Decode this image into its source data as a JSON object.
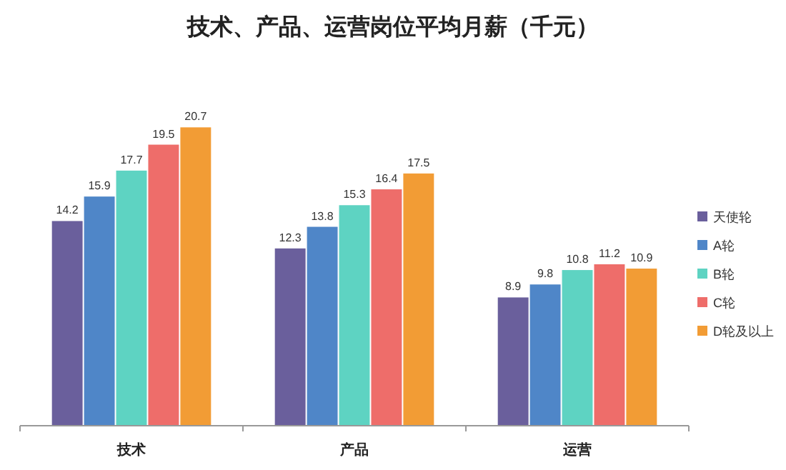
{
  "chart_data": {
    "type": "bar",
    "title": "技术、产品、运营岗位平均月薪（千元）",
    "categories": [
      "技术",
      "产品",
      "运营"
    ],
    "series": [
      {
        "name": "天使轮",
        "color": "#6a5f9c",
        "values": [
          14.2,
          12.3,
          8.9
        ]
      },
      {
        "name": "A轮",
        "color": "#4f86c8",
        "values": [
          15.9,
          13.8,
          9.8
        ]
      },
      {
        "name": "B轮",
        "color": "#5ed3c2",
        "values": [
          17.7,
          15.3,
          10.8
        ]
      },
      {
        "name": "C轮",
        "color": "#ee6d6a",
        "values": [
          19.5,
          16.4,
          11.2
        ]
      },
      {
        "name": "D轮及以上",
        "color": "#f29c35",
        "values": [
          20.7,
          17.5,
          10.9
        ]
      }
    ],
    "data_labels": true,
    "legend": "right",
    "grid": false
  }
}
